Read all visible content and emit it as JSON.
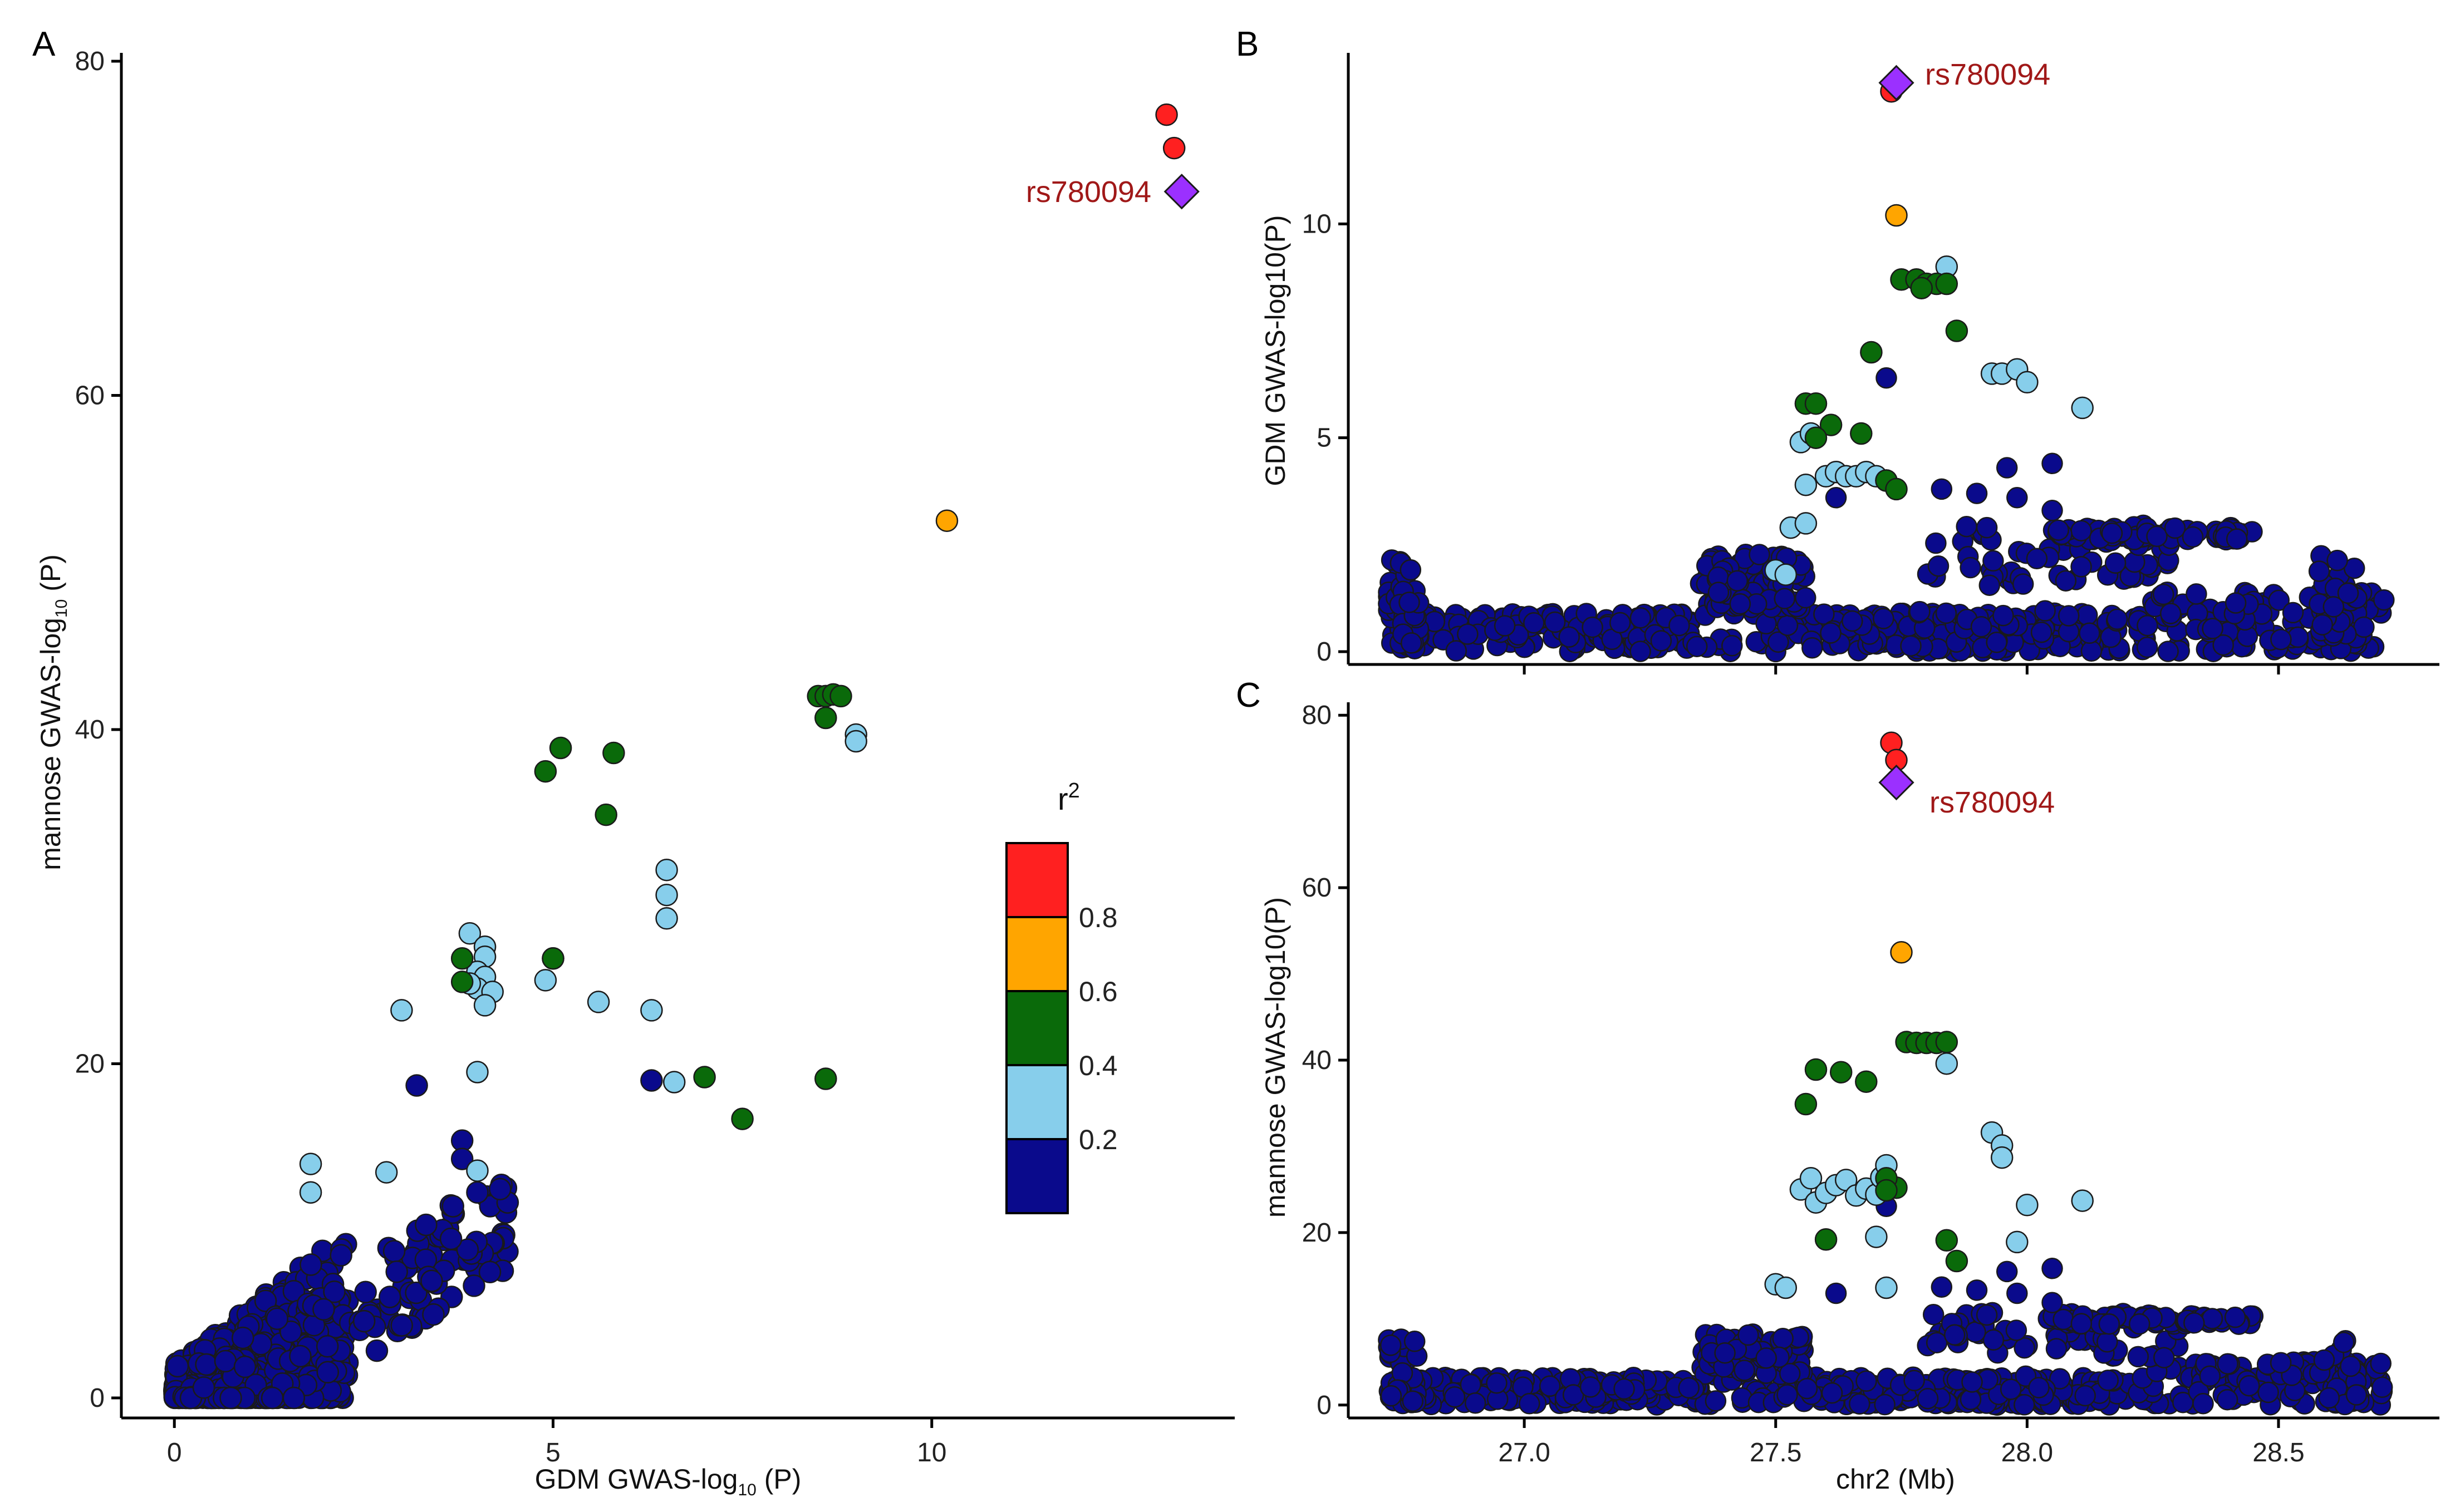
{
  "colors": {
    "r2_0_0.2": "#0a0a8c",
    "r2_0.2_0.4": "#87ceeb",
    "r2_0.4_0.6": "#0a6a0a",
    "r2_0.6_0.8": "#ffa500",
    "r2_0.8_1": "#ff2020",
    "lead": "#9b30ff",
    "label": "#a01818"
  },
  "chart_data": [
    {
      "panel": "A",
      "type": "scatter",
      "xlabel_main": "GDM GWAS-log",
      "xlabel_sub": "10",
      "xlabel_tail": " (P)",
      "ylabel_main": "mannose GWAS-log",
      "ylabel_sub": "10",
      "ylabel_tail": " (P)",
      "xlim": [
        -0.7,
        14
      ],
      "ylim": [
        -1.2,
        80.5
      ],
      "xticks": [
        "0",
        "5",
        "10"
      ],
      "xtick_values": [
        0,
        5,
        10
      ],
      "yticks": [
        "0",
        "20",
        "40",
        "60",
        "80"
      ],
      "ytick_values": [
        0,
        20,
        40,
        60,
        80
      ],
      "lead_snp": {
        "label": "rs780094",
        "x": 13.3,
        "y": 72.2
      },
      "points_by_r2": {
        "red": [
          [
            13.1,
            76.8
          ],
          [
            13.2,
            74.8
          ]
        ],
        "orange": [
          [
            10.2,
            52.5
          ]
        ],
        "green": [
          [
            4.9,
            37.5
          ],
          [
            5.1,
            38.9
          ],
          [
            5.8,
            38.6
          ],
          [
            5.7,
            34.9
          ],
          [
            5.0,
            26.3
          ],
          [
            3.8,
            24.9
          ],
          [
            3.8,
            26.3
          ],
          [
            7.0,
            19.2
          ],
          [
            7.5,
            16.7
          ],
          [
            8.6,
            19.1
          ],
          [
            8.5,
            42.0
          ],
          [
            8.6,
            42.0
          ],
          [
            8.7,
            42.1
          ],
          [
            8.8,
            42.0
          ],
          [
            8.6,
            40.7
          ]
        ],
        "lightblue": [
          [
            3.9,
            27.8
          ],
          [
            4.1,
            27.0
          ],
          [
            4.1,
            26.4
          ],
          [
            4.0,
            25.5
          ],
          [
            4.1,
            25.2
          ],
          [
            4.0,
            24.5
          ],
          [
            4.2,
            24.3
          ],
          [
            3.9,
            24.8
          ],
          [
            4.1,
            23.5
          ],
          [
            4.0,
            19.5
          ],
          [
            4.9,
            25.0
          ],
          [
            5.0,
            26.3
          ],
          [
            6.5,
            31.6
          ],
          [
            6.5,
            30.1
          ],
          [
            6.5,
            28.7
          ],
          [
            5.6,
            23.7
          ],
          [
            6.3,
            23.2
          ],
          [
            3.0,
            23.2
          ],
          [
            6.6,
            18.9
          ],
          [
            9.0,
            39.7
          ],
          [
            9.0,
            39.3
          ],
          [
            4.0,
            13.6
          ],
          [
            1.8,
            14.0
          ],
          [
            2.8,
            13.5
          ],
          [
            1.8,
            12.3
          ]
        ]
      }
    },
    {
      "panel": "B",
      "type": "scatter",
      "ylabel": "GDM GWAS-log10(P)",
      "xlim": [
        26.65,
        28.82
      ],
      "ylim": [
        -0.3,
        14.0
      ],
      "yticks": [
        "0",
        "5",
        "10"
      ],
      "ytick_values": [
        0,
        5,
        10
      ],
      "xtick_values": [
        27.0,
        27.5,
        28.0,
        28.5
      ],
      "lead_snp": {
        "label": "rs780094",
        "x": 27.74,
        "y": 13.3
      },
      "points_by_r2": {
        "red": [
          [
            27.73,
            13.1
          ]
        ],
        "orange": [
          [
            27.74,
            10.2
          ]
        ],
        "green": [
          [
            27.56,
            5.8
          ],
          [
            27.58,
            5.8
          ],
          [
            27.61,
            5.3
          ],
          [
            27.67,
            5.1
          ],
          [
            27.69,
            7.0
          ],
          [
            27.72,
            4.0
          ],
          [
            27.75,
            8.7
          ],
          [
            27.78,
            8.7
          ],
          [
            27.8,
            8.6
          ],
          [
            27.82,
            8.6
          ],
          [
            27.84,
            8.6
          ],
          [
            27.86,
            7.5
          ],
          [
            27.79,
            8.5
          ],
          [
            27.58,
            5.0
          ],
          [
            27.74,
            3.8
          ]
        ],
        "lightblue": [
          [
            27.55,
            4.9
          ],
          [
            27.57,
            5.1
          ],
          [
            27.56,
            3.9
          ],
          [
            27.6,
            4.1
          ],
          [
            27.62,
            4.2
          ],
          [
            27.64,
            4.1
          ],
          [
            27.66,
            4.1
          ],
          [
            27.68,
            4.2
          ],
          [
            27.7,
            4.1
          ],
          [
            27.72,
            4.0
          ],
          [
            27.84,
            9.0
          ],
          [
            27.93,
            6.5
          ],
          [
            27.95,
            6.5
          ],
          [
            27.98,
            6.6
          ],
          [
            28.0,
            6.3
          ],
          [
            28.11,
            5.7
          ],
          [
            27.5,
            1.9
          ],
          [
            27.52,
            1.8
          ],
          [
            27.53,
            2.9
          ],
          [
            27.56,
            3.0
          ]
        ]
      }
    },
    {
      "panel": "C",
      "type": "scatter",
      "ylabel": "mannose GWAS-log10(P)",
      "xlabel": "chr2 (Mb)",
      "xlim": [
        26.65,
        28.82
      ],
      "ylim": [
        -1.5,
        81.5
      ],
      "yticks": [
        "0",
        "20",
        "40",
        "60",
        "80"
      ],
      "ytick_values": [
        0,
        20,
        40,
        60,
        80
      ],
      "xticks": [
        "27.0",
        "27.5",
        "28.0",
        "28.5"
      ],
      "xtick_values": [
        27.0,
        27.5,
        28.0,
        28.5
      ],
      "lead_snp": {
        "label": "rs780094",
        "x": 27.74,
        "y": 72.2
      },
      "points_by_r2": {
        "red": [
          [
            27.73,
            76.8
          ],
          [
            27.74,
            74.8
          ]
        ],
        "orange": [
          [
            27.75,
            52.5
          ]
        ],
        "green": [
          [
            27.56,
            34.9
          ],
          [
            27.58,
            38.9
          ],
          [
            27.63,
            38.6
          ],
          [
            27.68,
            37.5
          ],
          [
            27.74,
            25.2
          ],
          [
            27.76,
            42.1
          ],
          [
            27.78,
            42.0
          ],
          [
            27.8,
            42.0
          ],
          [
            27.82,
            42.0
          ],
          [
            27.84,
            42.1
          ],
          [
            27.86,
            16.7
          ],
          [
            27.84,
            19.1
          ],
          [
            27.6,
            19.2
          ],
          [
            27.72,
            26.3
          ],
          [
            27.72,
            24.9
          ]
        ],
        "lightblue": [
          [
            27.55,
            25.0
          ],
          [
            27.57,
            26.3
          ],
          [
            27.58,
            23.5
          ],
          [
            27.6,
            24.6
          ],
          [
            27.62,
            25.5
          ],
          [
            27.64,
            26.1
          ],
          [
            27.66,
            24.3
          ],
          [
            27.68,
            25.1
          ],
          [
            27.7,
            24.4
          ],
          [
            27.71,
            26.4
          ],
          [
            27.72,
            27.8
          ],
          [
            27.84,
            39.6
          ],
          [
            27.93,
            31.6
          ],
          [
            27.95,
            30.1
          ],
          [
            27.95,
            28.7
          ],
          [
            27.98,
            18.9
          ],
          [
            28.0,
            23.2
          ],
          [
            28.11,
            23.7
          ],
          [
            27.5,
            14.0
          ],
          [
            27.52,
            13.6
          ],
          [
            27.7,
            19.5
          ],
          [
            27.72,
            13.6
          ]
        ]
      }
    }
  ],
  "panel_labels": {
    "a": "A",
    "b": "B",
    "c": "C"
  },
  "legend": {
    "title_main": "r",
    "title_sup": "2",
    "labels": [
      "0.8",
      "0.6",
      "0.4",
      "0.2"
    ]
  }
}
